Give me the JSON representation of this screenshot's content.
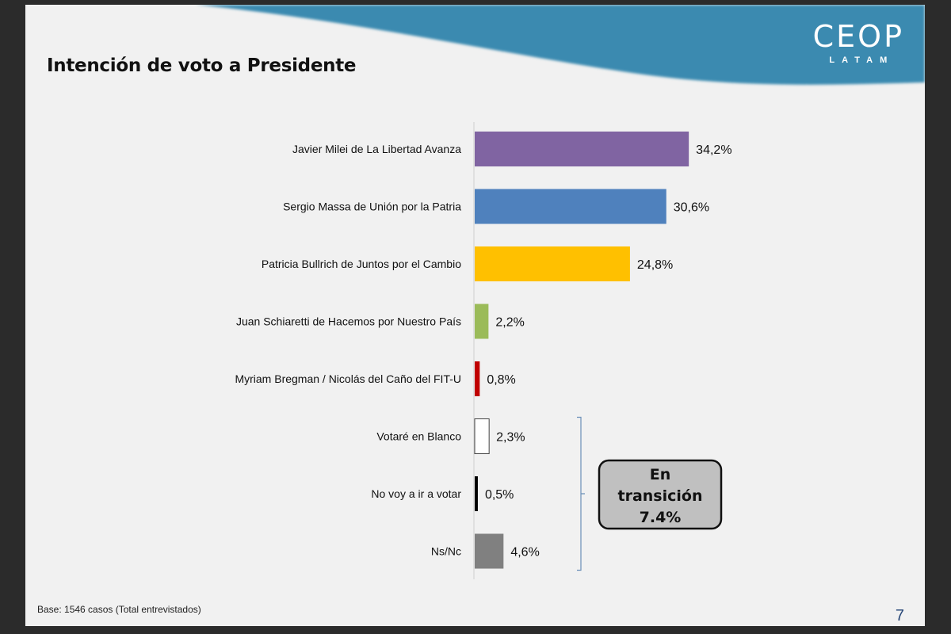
{
  "slide": {
    "title": "Intención de voto a Presidente",
    "logo": {
      "main": "CEOP",
      "sub": "LATAM"
    },
    "footer_note": "Base: 1546 casos (Total entrevistados)",
    "page_number": "7",
    "brand_color": "#3a8ab0"
  },
  "chart_data": {
    "type": "bar",
    "orientation": "horizontal",
    "title": "Intención de voto a Presidente",
    "xlabel": "",
    "ylabel": "",
    "xlim": [
      0,
      35
    ],
    "grid": false,
    "categories": [
      "Javier Milei de La Libertad Avanza",
      "Sergio Massa de Unión por la Patria",
      "Patricia Bullrich de Juntos por el Cambio",
      "Juan Schiaretti de Hacemos por Nuestro País",
      "Myriam Bregman / Nicolás del Caño del FIT-U",
      "Votaré en Blanco",
      "No voy a ir a votar",
      "Ns/Nc"
    ],
    "values": [
      34.2,
      30.6,
      24.8,
      2.2,
      0.8,
      2.3,
      0.5,
      4.6
    ],
    "value_labels": [
      "34,2%",
      "30,6%",
      "24,8%",
      "2,2%",
      "0,8%",
      "2,3%",
      "0,5%",
      "4,6%"
    ],
    "colors": [
      "#8064a2",
      "#4f81bd",
      "#ffc000",
      "#9bbb59",
      "#c00000",
      "#ffffff",
      "#000000",
      "#808080"
    ],
    "annotation": {
      "text_lines": [
        "En",
        "transición",
        "7.4%"
      ],
      "groups_categories": [
        "Votaré en Blanco",
        "No voy a ir a votar",
        "Ns/Nc"
      ],
      "box_fill": "#c0c0c0"
    }
  }
}
